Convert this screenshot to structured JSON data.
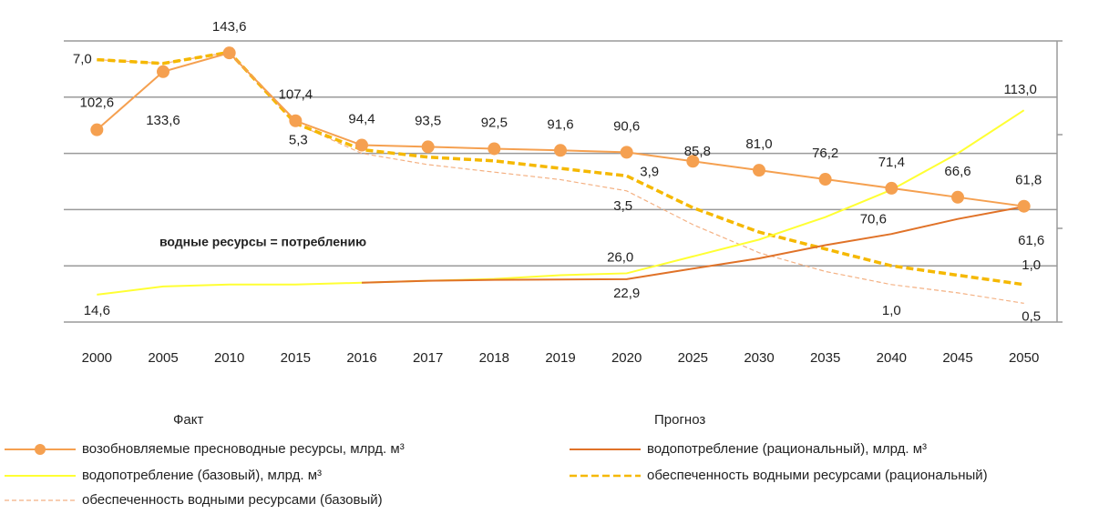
{
  "chart_data": {
    "type": "line",
    "categories": [
      "2000",
      "2005",
      "2010",
      "2015",
      "2016",
      "2017",
      "2018",
      "2019",
      "2020",
      "2025",
      "2030",
      "2035",
      "2040",
      "2045",
      "2050"
    ],
    "ylim": [
      0,
      150
    ],
    "yticks": [
      0,
      30,
      60,
      90,
      120,
      150
    ],
    "y2lim": [
      0,
      7.5
    ],
    "y2ticks": [
      0,
      2.5,
      5,
      7.5
    ],
    "grid": true,
    "annotation": "водные ресурсы = потреблению",
    "legend_groups": [
      "Факт",
      "Прогноз"
    ],
    "series": [
      {
        "name": "возобновляемые пресноводные ресурсы, млрд. м³",
        "color": "#f5a050",
        "marker": "circle",
        "dash": "solid",
        "values": [
          102.6,
          133.6,
          143.6,
          107.4,
          94.4,
          93.5,
          92.5,
          91.6,
          90.6,
          85.8,
          81.0,
          76.2,
          71.4,
          66.6,
          61.8
        ],
        "value_labels": [
          "102,6",
          "133,6",
          "143,6",
          "107,4",
          "94,4",
          "93,5",
          "92,5",
          "91,6",
          "90,6",
          "85,8",
          "81,0",
          "76,2",
          "71,4",
          "66,6",
          "61,8"
        ]
      },
      {
        "name": "водопотребление (рациональный), млрд. м³",
        "color": "#e07228",
        "dash": "solid",
        "values": [
          null,
          null,
          null,
          null,
          21,
          22,
          22.5,
          22.7,
          22.9,
          28.5,
          34,
          41,
          47,
          55,
          61.6
        ],
        "value_labels": [
          null,
          null,
          null,
          null,
          null,
          null,
          null,
          null,
          "22,9",
          null,
          null,
          null,
          null,
          null,
          "61,6"
        ]
      },
      {
        "name": "водопотребление (базовый), млрд. м³",
        "color": "#ffff33",
        "dash": "solid",
        "values": [
          14.6,
          19,
          20,
          20,
          21,
          22,
          23,
          25,
          26.0,
          35,
          44,
          56,
          70.6,
          90,
          113.0
        ],
        "value_labels": [
          "14,6",
          null,
          null,
          null,
          null,
          null,
          null,
          null,
          "26,0",
          null,
          null,
          null,
          "70,6",
          null,
          "113,0"
        ]
      },
      {
        "name": "обеспеченность водными ресурсами (рациональный)",
        "color": "#f5b800",
        "dash": "dashed",
        "axis": "y2",
        "values": [
          7.0,
          6.9,
          7.2,
          5.3,
          4.6,
          4.4,
          4.3,
          4.1,
          3.9,
          3.05,
          2.4,
          1.95,
          1.5,
          1.25,
          1.0
        ],
        "value_labels": [
          "7,0",
          null,
          null,
          "5,3",
          null,
          null,
          null,
          null,
          "3,9",
          null,
          null,
          null,
          null,
          null,
          "1,0"
        ]
      },
      {
        "name": "обеспеченность водными ресурсами (базовый)",
        "color": "#f4b183",
        "dash": "thin-dashed",
        "axis": "y2",
        "values": [
          7.0,
          6.9,
          7.2,
          5.3,
          4.5,
          4.2,
          4.0,
          3.8,
          3.5,
          2.6,
          1.85,
          1.35,
          1.0,
          0.78,
          0.5
        ],
        "value_labels": [
          null,
          null,
          null,
          null,
          null,
          null,
          null,
          null,
          "3,5",
          null,
          null,
          null,
          "1,0",
          null,
          "0,5"
        ]
      }
    ]
  }
}
